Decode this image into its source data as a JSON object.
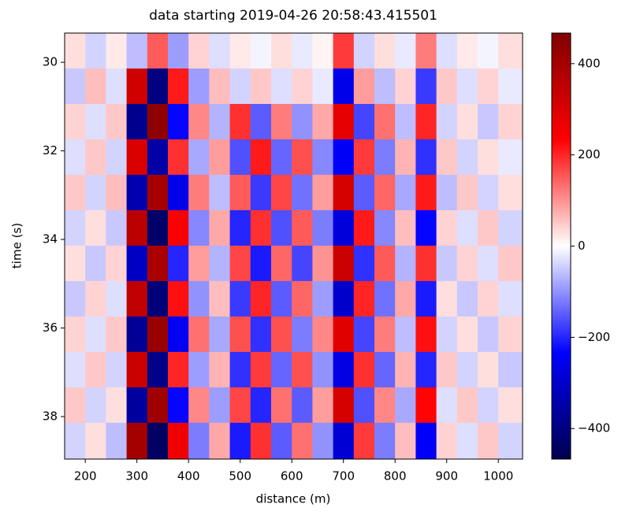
{
  "chart_data": {
    "type": "heatmap",
    "title": "data starting 2019-04-26 20:58:43.415501",
    "x_label": "distance (m)",
    "y_label": "time (s)",
    "colormap": "seismic",
    "y_inverted": true,
    "xlim": [
      160,
      1047
    ],
    "ylim": [
      29.34,
      38.96
    ],
    "xticks": [
      200,
      300,
      400,
      500,
      600,
      700,
      800,
      900,
      1000
    ],
    "yticks": [
      30,
      32,
      34,
      36,
      38
    ],
    "clim": [
      -467,
      467
    ],
    "cticks": [
      400,
      200,
      0,
      {
        "value": -200,
        "label": "−200"
      },
      {
        "value": -400,
        "label": "−400"
      }
    ],
    "x": [
      180,
      220,
      260,
      300,
      340,
      380,
      420,
      460,
      500,
      540,
      580,
      620,
      660,
      700,
      740,
      780,
      820,
      860,
      900,
      940,
      980,
      1020
    ],
    "y": [
      29.74,
      30.54,
      31.34,
      32.14,
      32.94,
      33.74,
      34.54,
      35.34,
      36.14,
      36.94,
      37.74,
      38.54
    ],
    "z": [
      [
        30,
        -40,
        20,
        -60,
        150,
        -90,
        40,
        -30,
        20,
        -10,
        30,
        -20,
        10,
        180,
        -40,
        30,
        -20,
        120,
        -30,
        20,
        -10,
        30
      ],
      [
        -50,
        60,
        -30,
        320,
        -400,
        210,
        -90,
        60,
        -40,
        50,
        -30,
        40,
        -20,
        -260,
        90,
        -60,
        40,
        -180,
        50,
        -30,
        40,
        -20
      ],
      [
        40,
        -30,
        50,
        -380,
        440,
        -230,
        110,
        -70,
        190,
        -150,
        120,
        -100,
        80,
        280,
        -170,
        130,
        -60,
        200,
        -40,
        30,
        -50,
        40
      ],
      [
        -30,
        50,
        -40,
        300,
        -350,
        190,
        -80,
        90,
        -160,
        210,
        -140,
        160,
        -110,
        -240,
        180,
        -120,
        70,
        -190,
        50,
        -40,
        30,
        -20
      ],
      [
        50,
        -40,
        60,
        -340,
        400,
        -260,
        120,
        -60,
        150,
        -180,
        170,
        -130,
        90,
        310,
        -150,
        140,
        -80,
        210,
        -60,
        50,
        -40,
        30
      ],
      [
        -40,
        30,
        -50,
        360,
        -430,
        240,
        -110,
        80,
        -200,
        190,
        -160,
        150,
        -120,
        -280,
        210,
        -110,
        60,
        -230,
        40,
        -30,
        50,
        -40
      ],
      [
        30,
        -50,
        40,
        -310,
        390,
        -200,
        90,
        -70,
        170,
        -210,
        140,
        -170,
        100,
        330,
        -190,
        150,
        -70,
        190,
        -50,
        40,
        -30,
        50
      ],
      [
        -50,
        40,
        -30,
        350,
        -410,
        220,
        -100,
        60,
        -180,
        200,
        -150,
        140,
        -90,
        -300,
        200,
        -130,
        80,
        -210,
        30,
        -50,
        40,
        -30
      ],
      [
        40,
        -30,
        50,
        -370,
        420,
        -250,
        130,
        -80,
        160,
        -190,
        160,
        -120,
        110,
        290,
        -170,
        120,
        -60,
        220,
        -40,
        30,
        -50,
        40
      ],
      [
        -30,
        50,
        -40,
        330,
        -390,
        200,
        -90,
        70,
        -190,
        180,
        -140,
        160,
        -100,
        -270,
        190,
        -140,
        70,
        -200,
        50,
        -40,
        30,
        -50
      ],
      [
        50,
        -40,
        30,
        -360,
        410,
        -230,
        110,
        -90,
        170,
        -200,
        130,
        -150,
        90,
        310,
        -160,
        110,
        -80,
        230,
        -30,
        50,
        -40,
        30
      ],
      [
        -40,
        30,
        -60,
        400,
        -440,
        260,
        -120,
        80,
        -210,
        190,
        -150,
        130,
        -100,
        -290,
        180,
        -120,
        60,
        -240,
        40,
        -30,
        50,
        -40
      ]
    ]
  }
}
